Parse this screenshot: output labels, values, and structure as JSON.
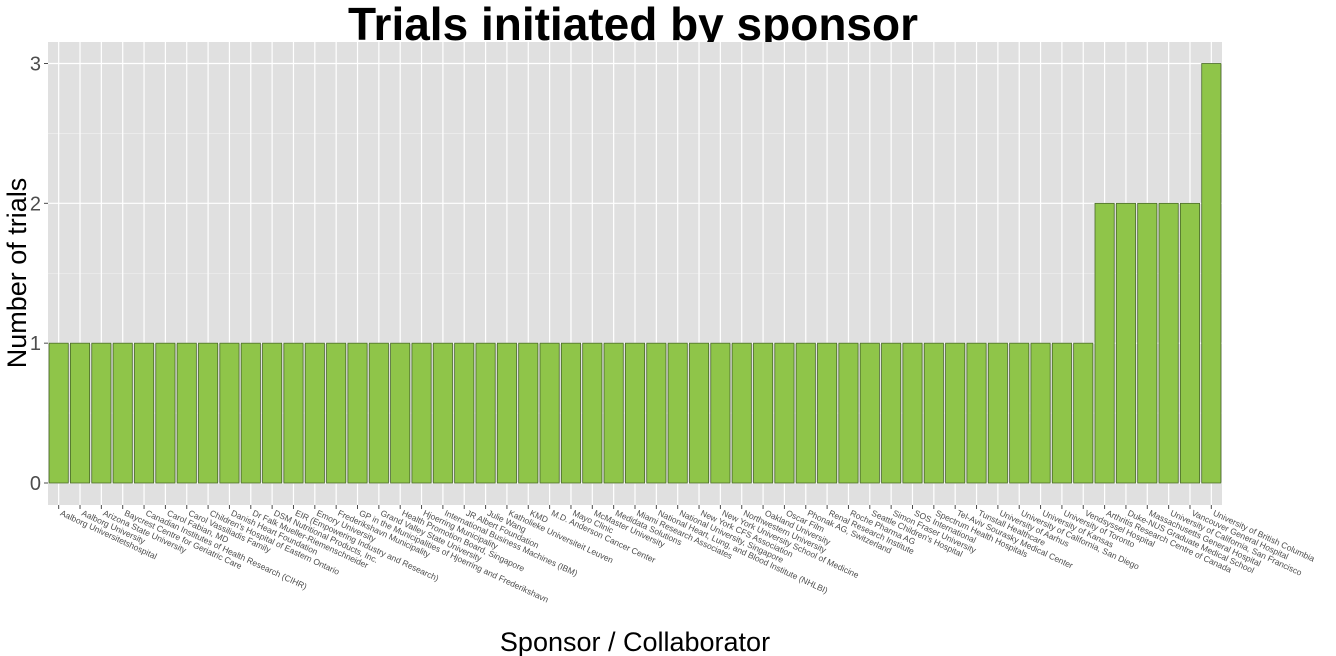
{
  "chart_data": {
    "type": "bar",
    "title": "Trials initiated by sponsor",
    "xlabel": "Sponsor / Collaborator",
    "ylabel": "Number of trials",
    "ylim": [
      0,
      3.15
    ],
    "yticks": [
      0,
      1,
      2,
      3
    ],
    "grid": true,
    "legend": "none",
    "bar_color": "#8fc549",
    "bar_edge_color": "#4a6a2a",
    "panel_color": "#e0e0e0",
    "categories": [
      "Aalborg Universitetshospital",
      "Aalborg University",
      "Arizona State University",
      "Baycrest Centre for Geriatric Care",
      "Canadian Institutes of Health Research (CIHR)",
      "Carol Fabian, MD",
      "Carol Vassiliadis Family",
      "Children's Hospital of Eastern Ontario",
      "Danish Heart Foundation",
      "Dr Falk Mueller-Riemenschneider",
      "DSM Nutritional Products, Inc.",
      "EIR (Empowering Industry and Research)",
      "Emory University",
      "Frederikshavn Municipality",
      "GP in the Municipalities of Hjoerring and Frederikshavn",
      "Grand Valley State University",
      "Health Promotion Board, Singapore",
      "Hjoerring Municipality",
      "International Business Machines (IBM)",
      "JR Albert Foundation",
      "Julie Wang",
      "Katholieke Universiteit Leuven",
      "KMD",
      "M.D. Anderson Cancer Center",
      "Mayo Clinic",
      "McMaster University",
      "Medidata Solutions",
      "Miami Research Associates",
      "National Heart, Lung, and Blood Institute (NHLBI)",
      "National University, Singapore",
      "New York CFS Association",
      "New York University School of Medicine",
      "Northwestern University",
      "Oakland University",
      "Oscar Film",
      "Phonak AG, Switzerland",
      "Renal Research Institute",
      "Roche Pharma AG",
      "Seattle Children's Hospital",
      "Simon Fraser University",
      "SOS International",
      "Spectrum Health Hospitals",
      "Tel-Aviv Sourasky Medical Center",
      "Tunstall Healthcare",
      "University of Aarhus",
      "University of California, San Diego",
      "University of Kansas",
      "University of Toronto",
      "Vendsyssel Hospital",
      "Arthritis Research Centre of Canada",
      "Duke-NUS Graduate Medical School",
      "Massachusetts General Hospital",
      "University of California, San Francisco",
      "Vancouver General Hospital",
      "University of British Columbia"
    ],
    "values": [
      1,
      1,
      1,
      1,
      1,
      1,
      1,
      1,
      1,
      1,
      1,
      1,
      1,
      1,
      1,
      1,
      1,
      1,
      1,
      1,
      1,
      1,
      1,
      1,
      1,
      1,
      1,
      1,
      1,
      1,
      1,
      1,
      1,
      1,
      1,
      1,
      1,
      1,
      1,
      1,
      1,
      1,
      1,
      1,
      1,
      1,
      1,
      1,
      1,
      2,
      2,
      2,
      2,
      2,
      3
    ]
  }
}
